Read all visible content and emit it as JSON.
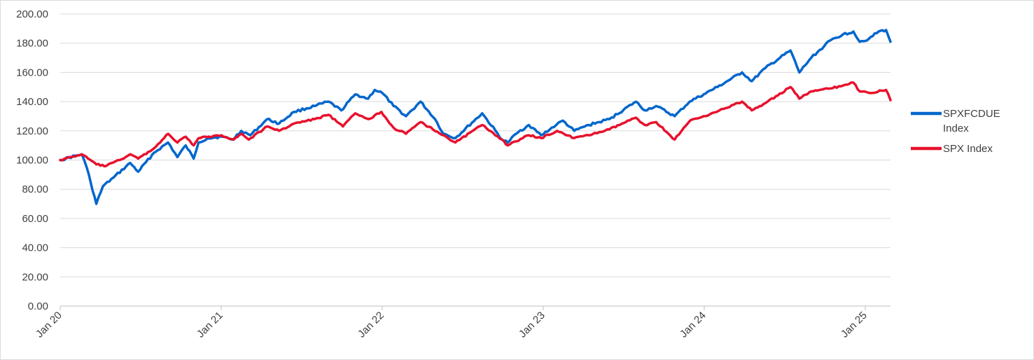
{
  "chart_data": {
    "type": "line",
    "title": "",
    "xlabel": "",
    "ylabel": "",
    "ylim": [
      0,
      200
    ],
    "y_ticks": [
      "0.00",
      "20.00",
      "40.00",
      "60.00",
      "80.00",
      "100.00",
      "120.00",
      "140.00",
      "160.00",
      "180.00",
      "200.00"
    ],
    "x_ticks": [
      "Jan 20",
      "Jan 21",
      "Jan 22",
      "Jan 23",
      "Jan 24",
      "Jan 25"
    ],
    "x_range": [
      "2020-01-01",
      "2025-02-28"
    ],
    "grid": "horizontal",
    "legend_position": "right",
    "series": [
      {
        "name": "SPXFCDUE Index",
        "color": "#0066CC",
        "points": [
          [
            "2020-01-01",
            100
          ],
          [
            "2020-02-19",
            104
          ],
          [
            "2020-03-01",
            95
          ],
          [
            "2020-03-10",
            85
          ],
          [
            "2020-03-23",
            70
          ],
          [
            "2020-04-07",
            82
          ],
          [
            "2020-05-01",
            88
          ],
          [
            "2020-06-08",
            98
          ],
          [
            "2020-06-26",
            92
          ],
          [
            "2020-08-01",
            105
          ],
          [
            "2020-09-02",
            112
          ],
          [
            "2020-09-23",
            102
          ],
          [
            "2020-10-12",
            110
          ],
          [
            "2020-10-30",
            101
          ],
          [
            "2020-11-10",
            112
          ],
          [
            "2020-12-01",
            115
          ],
          [
            "2021-01-01",
            116
          ],
          [
            "2021-01-27",
            114
          ],
          [
            "2021-02-15",
            120
          ],
          [
            "2021-03-08",
            117
          ],
          [
            "2021-04-15",
            128
          ],
          [
            "2021-05-12",
            125
          ],
          [
            "2021-06-15",
            133
          ],
          [
            "2021-08-01",
            137
          ],
          [
            "2021-09-01",
            140
          ],
          [
            "2021-09-30",
            134
          ],
          [
            "2021-11-01",
            145
          ],
          [
            "2021-11-30",
            142
          ],
          [
            "2021-12-15",
            148
          ],
          [
            "2022-01-01",
            146
          ],
          [
            "2022-01-27",
            137
          ],
          [
            "2022-02-24",
            130
          ],
          [
            "2022-03-29",
            140
          ],
          [
            "2022-05-01",
            128
          ],
          [
            "2022-05-20",
            118
          ],
          [
            "2022-06-16",
            115
          ],
          [
            "2022-08-16",
            132
          ],
          [
            "2022-09-30",
            114
          ],
          [
            "2022-10-13",
            112
          ],
          [
            "2022-11-01",
            118
          ],
          [
            "2022-11-30",
            124
          ],
          [
            "2022-12-28",
            117
          ],
          [
            "2023-01-31",
            124
          ],
          [
            "2023-02-15",
            127
          ],
          [
            "2023-03-13",
            120
          ],
          [
            "2023-04-15",
            124
          ],
          [
            "2023-06-01",
            128
          ],
          [
            "2023-07-31",
            140
          ],
          [
            "2023-08-20",
            134
          ],
          [
            "2023-09-15",
            137
          ],
          [
            "2023-10-27",
            130
          ],
          [
            "2023-11-30",
            140
          ],
          [
            "2024-01-01",
            145
          ],
          [
            "2024-02-01",
            150
          ],
          [
            "2024-03-28",
            160
          ],
          [
            "2024-04-19",
            154
          ],
          [
            "2024-05-20",
            163
          ],
          [
            "2024-07-16",
            175
          ],
          [
            "2024-08-05",
            160
          ],
          [
            "2024-09-01",
            170
          ],
          [
            "2024-10-15",
            182
          ],
          [
            "2024-11-12",
            186
          ],
          [
            "2024-12-06",
            188
          ],
          [
            "2024-12-20",
            181
          ],
          [
            "2025-01-10",
            183
          ],
          [
            "2025-02-01",
            188
          ],
          [
            "2025-02-18",
            189
          ],
          [
            "2025-02-28",
            181
          ]
        ]
      },
      {
        "name": "SPX Index",
        "color": "#E8112D",
        "points": [
          [
            "2020-01-01",
            100
          ],
          [
            "2020-02-19",
            104
          ],
          [
            "2020-03-23",
            97
          ],
          [
            "2020-04-15",
            96
          ],
          [
            "2020-05-15",
            100
          ],
          [
            "2020-06-08",
            104
          ],
          [
            "2020-06-26",
            101
          ],
          [
            "2020-08-01",
            108
          ],
          [
            "2020-09-02",
            118
          ],
          [
            "2020-09-23",
            112
          ],
          [
            "2020-10-12",
            116
          ],
          [
            "2020-10-30",
            110
          ],
          [
            "2020-11-10",
            115
          ],
          [
            "2021-01-01",
            117
          ],
          [
            "2021-01-29",
            114
          ],
          [
            "2021-02-15",
            118
          ],
          [
            "2021-03-04",
            114
          ],
          [
            "2021-04-15",
            123
          ],
          [
            "2021-05-12",
            120
          ],
          [
            "2021-06-15",
            125
          ],
          [
            "2021-08-01",
            128
          ],
          [
            "2021-09-01",
            131
          ],
          [
            "2021-10-04",
            123
          ],
          [
            "2021-11-01",
            132
          ],
          [
            "2021-12-01",
            128
          ],
          [
            "2021-12-30",
            133
          ],
          [
            "2022-01-27",
            122
          ],
          [
            "2022-02-24",
            118
          ],
          [
            "2022-03-29",
            126
          ],
          [
            "2022-05-20",
            117
          ],
          [
            "2022-06-16",
            112
          ],
          [
            "2022-08-16",
            124
          ],
          [
            "2022-09-30",
            114
          ],
          [
            "2022-10-13",
            110
          ],
          [
            "2022-11-30",
            117
          ],
          [
            "2022-12-28",
            115
          ],
          [
            "2023-02-02",
            120
          ],
          [
            "2023-03-13",
            115
          ],
          [
            "2023-04-15",
            117
          ],
          [
            "2023-06-01",
            121
          ],
          [
            "2023-07-31",
            129
          ],
          [
            "2023-08-20",
            124
          ],
          [
            "2023-09-15",
            126
          ],
          [
            "2023-10-27",
            114
          ],
          [
            "2023-12-01",
            127
          ],
          [
            "2024-01-01",
            130
          ],
          [
            "2024-02-15",
            135
          ],
          [
            "2024-03-28",
            140
          ],
          [
            "2024-04-19",
            134
          ],
          [
            "2024-05-20",
            139
          ],
          [
            "2024-07-16",
            150
          ],
          [
            "2024-08-05",
            142
          ],
          [
            "2024-09-01",
            147
          ],
          [
            "2024-10-15",
            149
          ],
          [
            "2024-11-12",
            151
          ],
          [
            "2024-12-06",
            153
          ],
          [
            "2024-12-20",
            147
          ],
          [
            "2025-01-10",
            146
          ],
          [
            "2025-02-18",
            148
          ],
          [
            "2025-02-28",
            141
          ]
        ]
      }
    ]
  }
}
